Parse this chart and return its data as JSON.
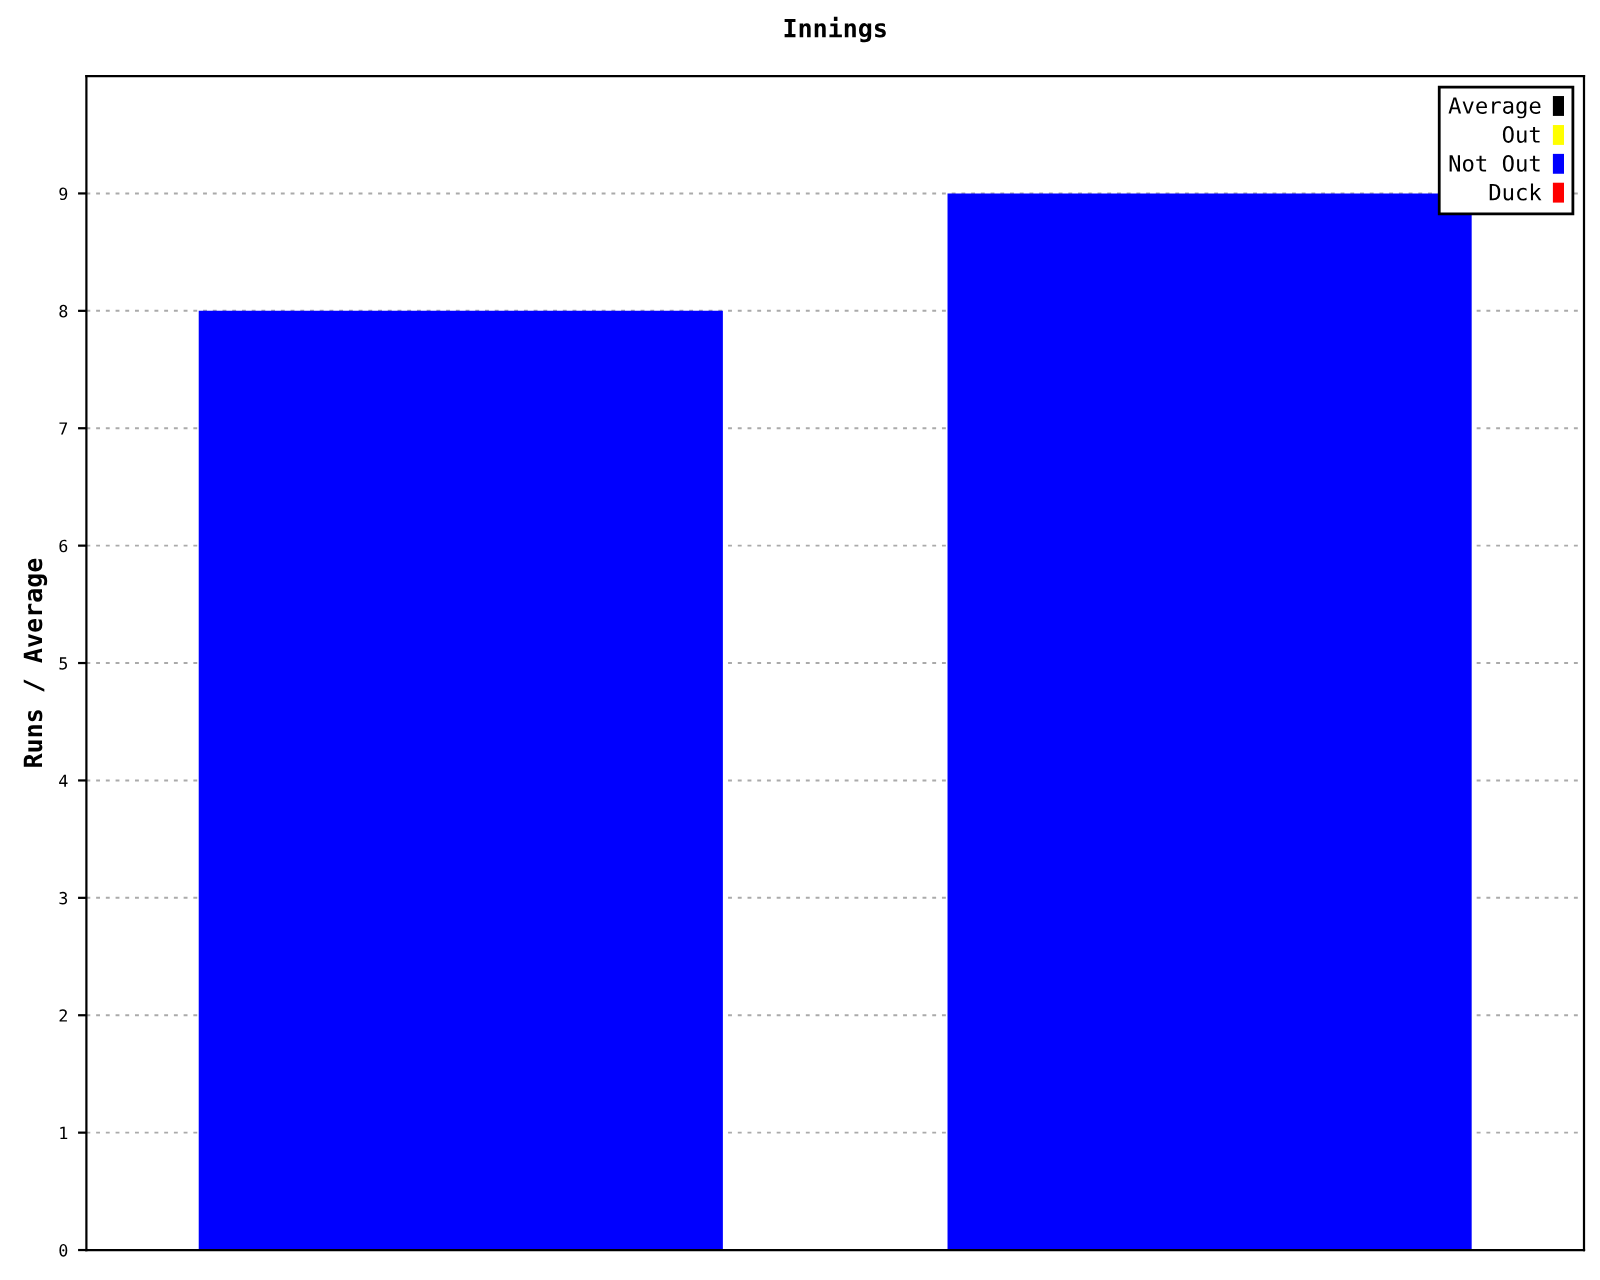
{
  "chart_data": {
    "type": "bar",
    "title": "Innings",
    "ylabel": "Runs / Average",
    "categories": [
      null,
      null
    ],
    "series": [
      {
        "name": "Average",
        "color": "#000000",
        "values": [
          null,
          null
        ]
      },
      {
        "name": "Out",
        "color": "#ffff00",
        "values": [
          null,
          null
        ]
      },
      {
        "name": "Not Out",
        "color": "#0000ff",
        "values": [
          8,
          9
        ]
      },
      {
        "name": "Duck",
        "color": "#ff0000",
        "values": [
          null,
          null
        ]
      }
    ],
    "ylim": [
      0,
      10
    ],
    "yticks": [
      0,
      1,
      2,
      3,
      4,
      5,
      6,
      7,
      8,
      9
    ],
    "grid": "y",
    "legend": "top right",
    "tick_labels": "y"
  }
}
